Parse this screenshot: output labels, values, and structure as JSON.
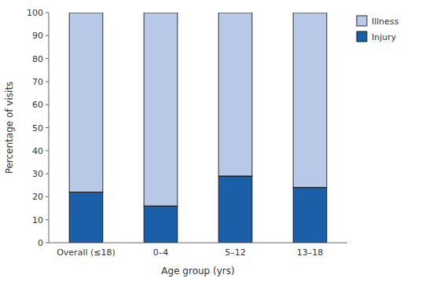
{
  "chart_data": {
    "type": "bar",
    "stacked": true,
    "categories": [
      "Overall (≤18)",
      "0–4",
      "5–12",
      "13–18"
    ],
    "series": [
      {
        "name": "Injury",
        "color": "#1a5fa8",
        "values": [
          22,
          16,
          29,
          24
        ]
      },
      {
        "name": "Illness",
        "color": "#b8c9e8",
        "values": [
          78,
          84,
          71,
          76
        ]
      }
    ],
    "xlabel": "Age group (yrs)",
    "ylabel": "Percentage of visits",
    "ylim": [
      0,
      100
    ],
    "yticks": [
      0,
      10,
      20,
      30,
      40,
      50,
      60,
      70,
      80,
      90,
      100
    ],
    "legend": "upper right"
  }
}
